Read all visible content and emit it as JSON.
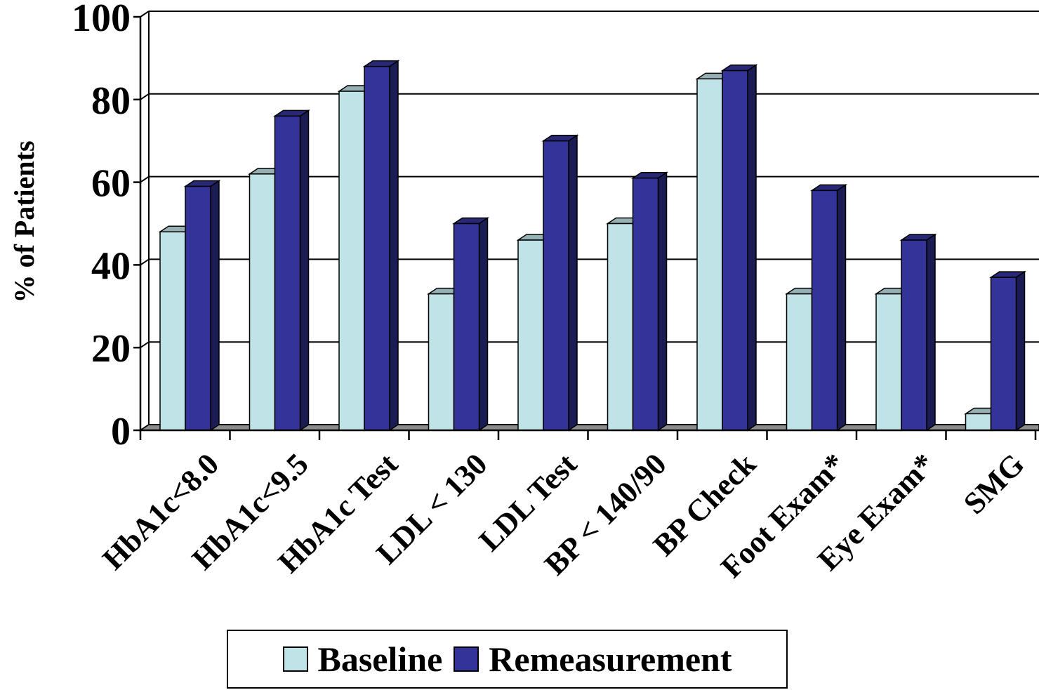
{
  "chart_data": {
    "type": "bar",
    "title": "",
    "xlabel": "",
    "ylabel": "% of Patients",
    "ylim": [
      0,
      100
    ],
    "yticks": [
      "0",
      "20",
      "40",
      "60",
      "80",
      "100"
    ],
    "grid": true,
    "three_d": true,
    "legend_position": "bottom",
    "categories": [
      "HbA1c<8.0",
      "HbA1c<9.5",
      "HbA1c Test",
      "LDL < 130",
      "LDL Test",
      "BP < 140/90",
      "BP Check",
      "Foot Exam*",
      "Eye Exam*",
      "SMG"
    ],
    "series": [
      {
        "name": "Baseline",
        "color": "#bfe3e6",
        "values": [
          48,
          62,
          82,
          33,
          46,
          50,
          85,
          33,
          33,
          4
        ]
      },
      {
        "name": "Remeasurement",
        "color": "#333399",
        "values": [
          59,
          76,
          88,
          50,
          70,
          61,
          87,
          58,
          46,
          37
        ]
      }
    ]
  }
}
